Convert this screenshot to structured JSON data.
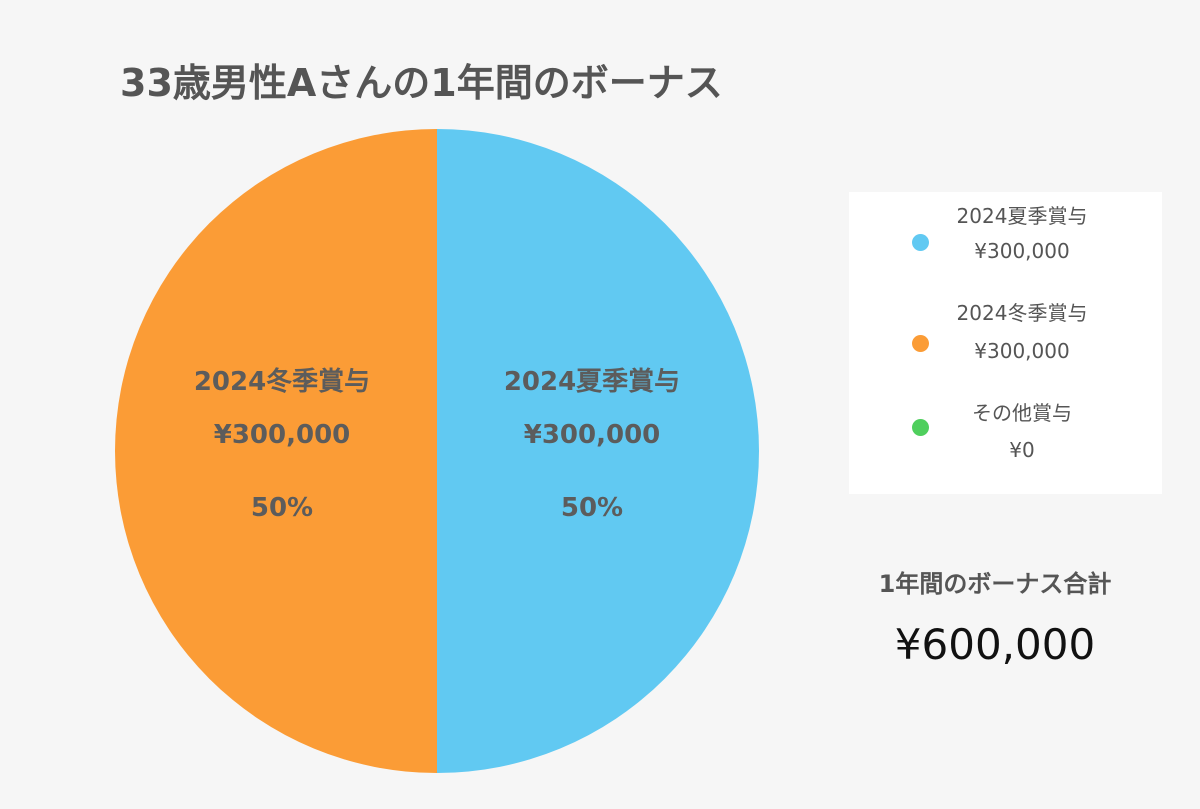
{
  "chart_data": {
    "type": "pie",
    "title": "33歳男性Aさんの1年間のボーナス",
    "slices": [
      {
        "name": "2024夏季賞与",
        "amount": "¥300,000",
        "value": 300000,
        "percent": "50%",
        "color": "#61c9f2"
      },
      {
        "name": "2024冬季賞与",
        "amount": "¥300,000",
        "value": 300000,
        "percent": "50%",
        "color": "#fb9c36"
      },
      {
        "name": "その他賞与",
        "amount": "¥0",
        "value": 0,
        "percent": "",
        "color": "#4fcf5d"
      }
    ],
    "legend_position": "right",
    "total": {
      "label": "1年間のボーナス合計",
      "value": "¥600,000"
    }
  }
}
